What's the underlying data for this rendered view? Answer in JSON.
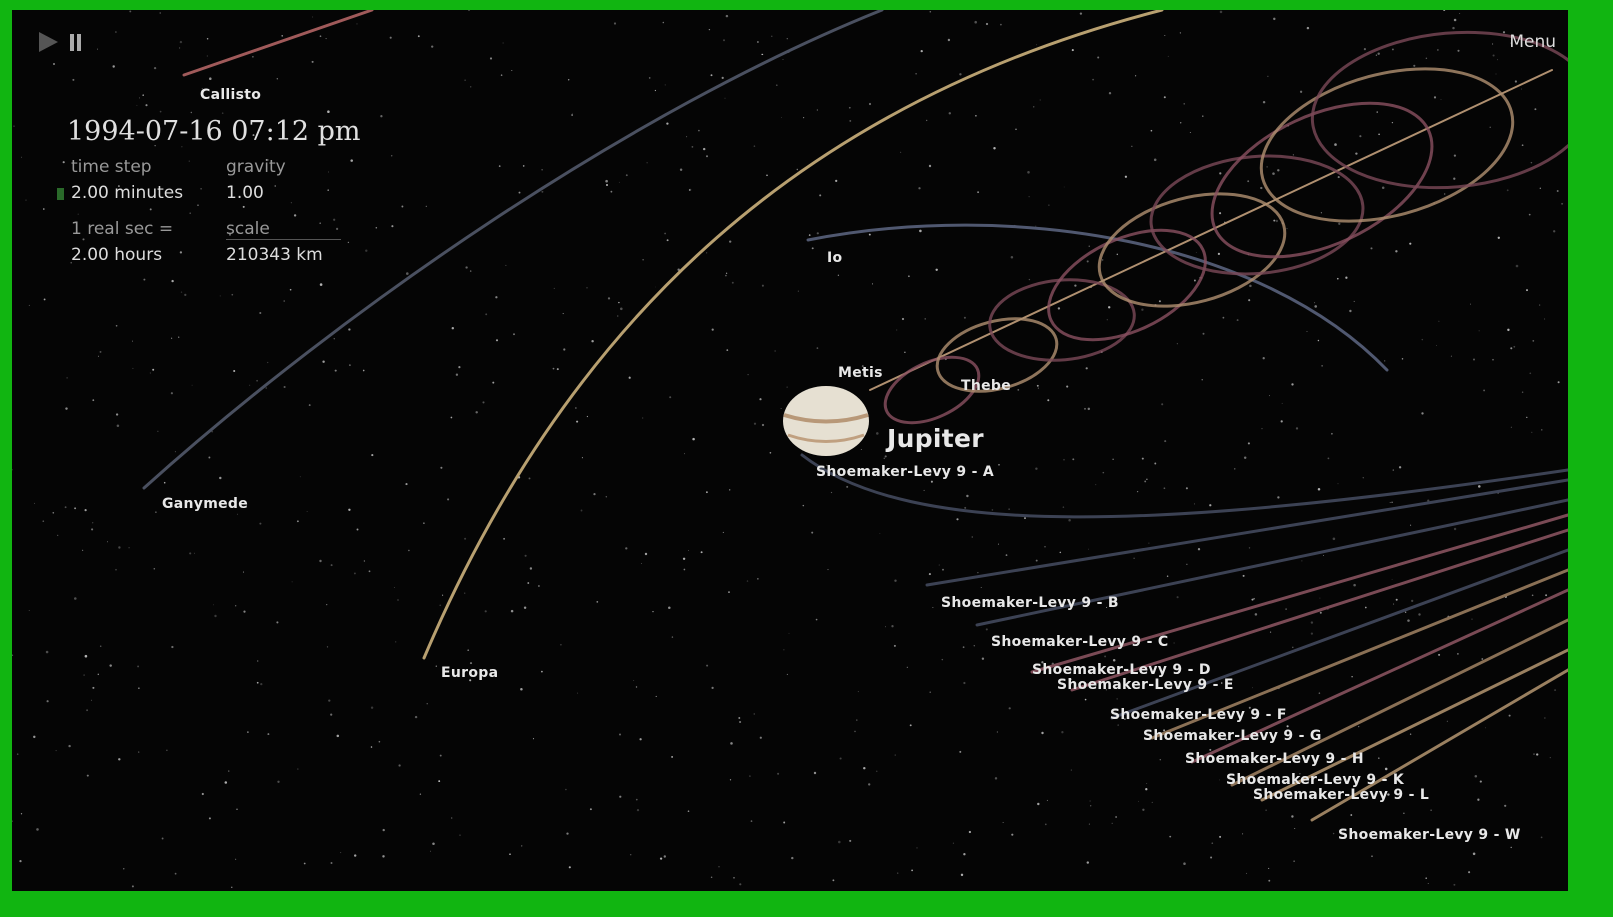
{
  "controls": {
    "menu": "Menu"
  },
  "info": {
    "datetime": "1994-07-16 07:12 pm",
    "time_step_label": "time step",
    "time_step": "2.00 minutes",
    "gravity_label": "gravity",
    "gravity": "1.00",
    "real_sec_label": "1 real sec =",
    "real_sec": "2.00 hours",
    "scale_label": "scale",
    "scale": "210343 km"
  },
  "bodies": [
    {
      "label": "Callisto"
    },
    {
      "label": "Io"
    },
    {
      "label": "Metis"
    },
    {
      "label": "Thebe"
    },
    {
      "label": "Jupiter"
    },
    {
      "label": "Shoemaker-Levy 9 - A"
    },
    {
      "label": "Ganymede"
    },
    {
      "label": "Europa"
    },
    {
      "label": "Shoemaker-Levy 9 - B"
    },
    {
      "label": "Shoemaker-Levy 9 - C"
    },
    {
      "label": "Shoemaker-Levy 9 - D"
    },
    {
      "label": "Shoemaker-Levy 9 - E"
    },
    {
      "label": "Shoemaker-Levy 9 - F"
    },
    {
      "label": "Shoemaker-Levy 9 - G"
    },
    {
      "label": "Shoemaker-Levy 9 - H"
    },
    {
      "label": "Shoemaker-Levy 9 - K"
    },
    {
      "label": "Shoemaker-Levy 9 - L"
    },
    {
      "label": "Shoemaker-Levy 9 - W"
    }
  ]
}
